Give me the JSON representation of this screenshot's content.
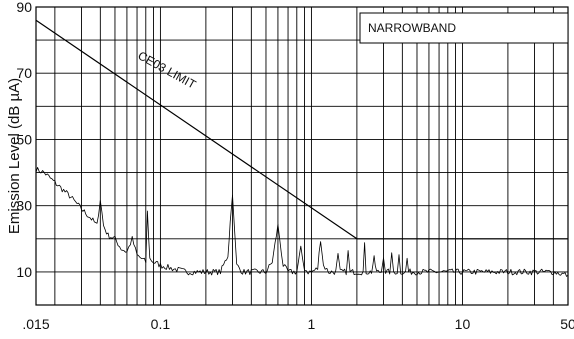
{
  "chart_data": {
    "type": "line",
    "title": "",
    "xlabel": "",
    "ylabel": "Emission Level (dB µA)",
    "x_scale": "log",
    "xlim": [
      0.015,
      50
    ],
    "ylim": [
      0,
      90
    ],
    "grid": true,
    "x_ticks": [
      {
        "value": 0.015,
        "label": ".015"
      },
      {
        "value": 0.1,
        "label": "0.1"
      },
      {
        "value": 1,
        "label": "1"
      },
      {
        "value": 10,
        "label": "10"
      },
      {
        "value": 50,
        "label": "50"
      }
    ],
    "y_ticks": [
      {
        "value": 10,
        "label": "10"
      },
      {
        "value": 30,
        "label": "30"
      },
      {
        "value": 50,
        "label": "50"
      },
      {
        "value": 70,
        "label": "70"
      },
      {
        "value": 90,
        "label": "90"
      }
    ],
    "annotations": [
      {
        "text": "NARROWBAND",
        "boxed": true
      },
      {
        "text": "CE03 LIMIT",
        "attached_to": "limit"
      }
    ],
    "series": [
      {
        "name": "CE03 LIMIT",
        "color": "#000000",
        "x": [
          0.015,
          2,
          50
        ],
        "y": [
          86,
          20,
          20
        ]
      },
      {
        "color": "#000000",
        "x": [
          0.015,
          0.017,
          0.02,
          0.025,
          0.03,
          0.035,
          0.038,
          0.04,
          0.042,
          0.045,
          0.05,
          0.055,
          0.06,
          0.065,
          0.07,
          0.075,
          0.08,
          0.082,
          0.085,
          0.09,
          0.1,
          0.12,
          0.15,
          0.2,
          0.25,
          0.28,
          0.29,
          0.3,
          0.31,
          0.32,
          0.35,
          0.4,
          0.5,
          0.55,
          0.6,
          0.65,
          0.7,
          0.8,
          0.85,
          0.9,
          0.95,
          1.0,
          1.1,
          1.15,
          1.2,
          1.3,
          1.45,
          1.5,
          1.55,
          1.7,
          1.75,
          1.8,
          2.0,
          2.2,
          2.25,
          2.3,
          2.5,
          2.6,
          2.7,
          2.9,
          3.0,
          3.1,
          3.3,
          3.4,
          3.5,
          3.7,
          3.8,
          3.9,
          4.2,
          4.3,
          4.4,
          5,
          6,
          8,
          10,
          15,
          20,
          30,
          40,
          50
        ],
        "y": [
          41,
          40,
          37,
          33,
          29,
          26,
          24,
          32,
          24,
          21,
          20,
          17,
          16,
          20,
          15,
          14,
          13,
          28,
          14,
          13,
          12,
          11,
          10,
          10,
          10,
          15,
          25,
          34,
          22,
          12,
          10,
          10,
          10,
          13,
          24,
          12,
          10,
          10,
          17,
          11,
          10,
          10,
          11,
          20,
          12,
          10,
          10,
          15,
          10,
          10,
          16,
          10,
          10,
          10,
          18,
          10,
          10,
          14,
          10,
          10,
          15,
          10,
          10,
          15,
          10,
          10,
          15,
          10,
          10,
          14,
          10,
          10,
          10,
          10,
          10,
          10,
          10,
          10,
          10,
          9
        ]
      }
    ]
  }
}
